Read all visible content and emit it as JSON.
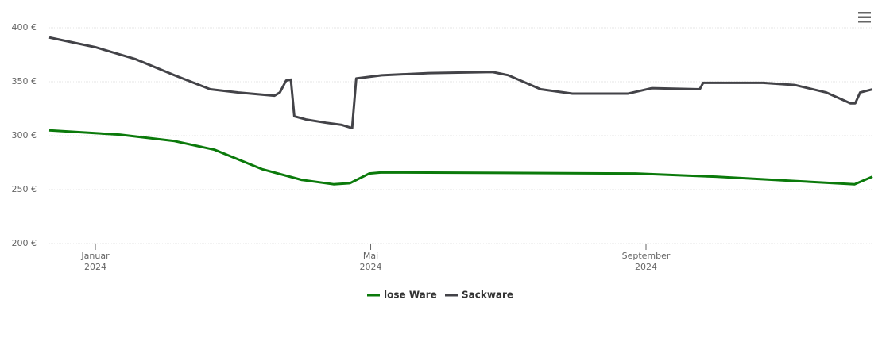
{
  "chart_data": {
    "type": "line",
    "xlim": [
      -0.67,
      11.29
    ],
    "xticks": [
      {
        "value": 0,
        "label": "Januar 2024"
      },
      {
        "value": 4,
        "label": "Mai 2024"
      },
      {
        "value": 8,
        "label": "September 2024"
      }
    ],
    "ylim": [
      200,
      400
    ],
    "yticks": [
      {
        "value": 200,
        "label": "200 €"
      },
      {
        "value": 250,
        "label": "250 €"
      },
      {
        "value": 300,
        "label": "300 €"
      },
      {
        "value": 350,
        "label": "350 €"
      },
      {
        "value": 400,
        "label": "400 €"
      }
    ],
    "grid": true,
    "legend": "bottom",
    "series": [
      {
        "name": "lose Ware",
        "color": "#0b7a0b",
        "x": [
          -0.67,
          0.35,
          1.15,
          1.73,
          2.42,
          3.0,
          3.46,
          3.7,
          3.98,
          4.16,
          7.85,
          9.01,
          10.16,
          11.03,
          11.29
        ],
        "values": [
          305,
          301,
          295,
          287,
          269,
          259,
          255,
          256,
          265,
          266,
          265,
          262,
          258,
          255,
          262
        ]
      },
      {
        "name": "Sackware",
        "color": "#434348",
        "x": [
          -0.67,
          0,
          0.58,
          1.15,
          1.67,
          2.08,
          2.6,
          2.68,
          2.77,
          2.84,
          2.89,
          3.06,
          3.35,
          3.58,
          3.73,
          3.79,
          4.16,
          4.85,
          5.77,
          6.0,
          6.47,
          6.93,
          7.74,
          8.08,
          8.78,
          8.83,
          9.7,
          10.16,
          10.62,
          10.97,
          11.04,
          11.11,
          11.29
        ],
        "values": [
          391,
          382,
          371,
          356,
          343,
          340,
          337,
          340,
          351,
          352,
          318,
          315,
          312,
          310,
          307,
          353,
          356,
          358,
          359,
          356,
          343,
          339,
          339,
          344,
          343,
          349,
          349,
          347,
          340,
          330,
          330,
          340,
          343
        ]
      }
    ]
  }
}
